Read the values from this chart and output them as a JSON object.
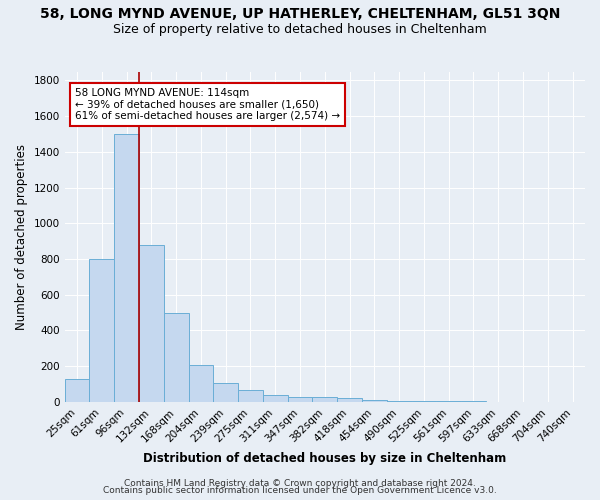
{
  "title_line1": "58, LONG MYND AVENUE, UP HATHERLEY, CHELTENHAM, GL51 3QN",
  "title_line2": "Size of property relative to detached houses in Cheltenham",
  "xlabel": "Distribution of detached houses by size in Cheltenham",
  "ylabel": "Number of detached properties",
  "categories": [
    "25sqm",
    "61sqm",
    "96sqm",
    "132sqm",
    "168sqm",
    "204sqm",
    "239sqm",
    "275sqm",
    "311sqm",
    "347sqm",
    "382sqm",
    "418sqm",
    "454sqm",
    "490sqm",
    "525sqm",
    "561sqm",
    "597sqm",
    "633sqm",
    "668sqm",
    "704sqm",
    "740sqm"
  ],
  "values": [
    130,
    800,
    1500,
    880,
    500,
    205,
    105,
    65,
    40,
    30,
    25,
    20,
    10,
    8,
    7,
    5,
    3,
    2,
    1,
    1,
    0
  ],
  "bar_color": "#c5d8ef",
  "bar_edge_color": "#6aaed6",
  "background_color": "#e8eef5",
  "grid_color": "#ffffff",
  "annotation_text": "58 LONG MYND AVENUE: 114sqm\n← 39% of detached houses are smaller (1,650)\n61% of semi-detached houses are larger (2,574) →",
  "annotation_box_facecolor": "white",
  "annotation_box_edgecolor": "#cc0000",
  "red_line_color": "#aa0000",
  "footer_line1": "Contains HM Land Registry data © Crown copyright and database right 2024.",
  "footer_line2": "Contains public sector information licensed under the Open Government Licence v3.0.",
  "ylim": [
    0,
    1850
  ],
  "yticks": [
    0,
    200,
    400,
    600,
    800,
    1000,
    1200,
    1400,
    1600,
    1800
  ],
  "title1_fontsize": 10,
  "title2_fontsize": 9,
  "axis_label_fontsize": 8.5,
  "tick_fontsize": 7.5,
  "annotation_fontsize": 7.5,
  "footer_fontsize": 6.5
}
